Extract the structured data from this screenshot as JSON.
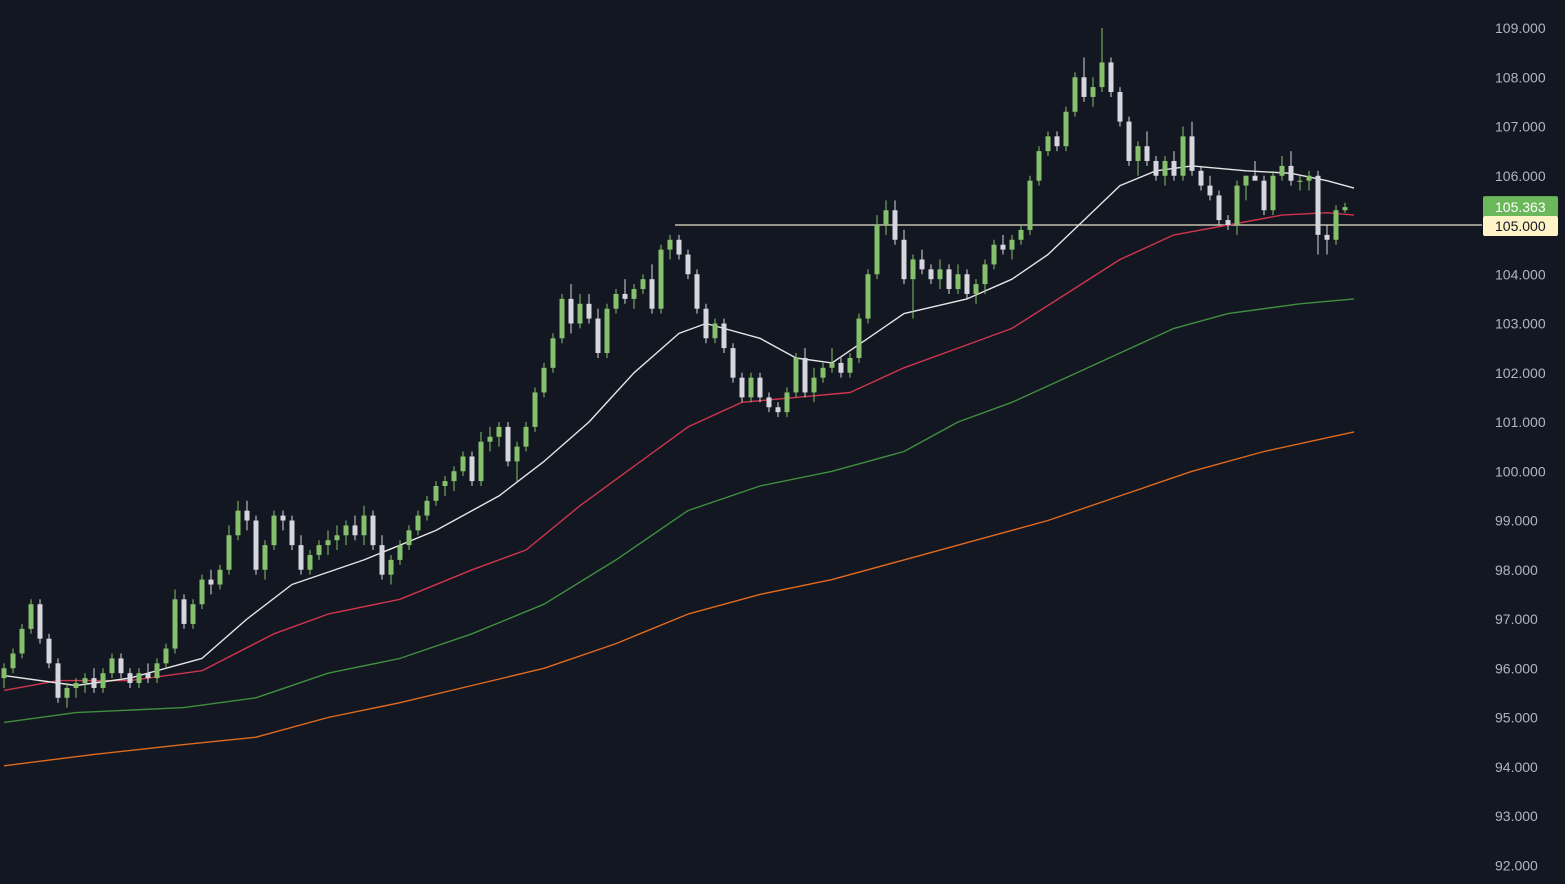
{
  "chart_data": {
    "type": "candlestick",
    "y_axis": {
      "position": "right",
      "ylim": [
        92.0,
        109.3
      ],
      "ticks": [
        "109.000",
        "108.000",
        "107.000",
        "106.000",
        "105.000",
        "104.000",
        "103.000",
        "102.000",
        "101.000",
        "100.000",
        "99.000",
        "98.000",
        "97.000",
        "96.000",
        "95.000",
        "94.000",
        "93.000",
        "92.000"
      ],
      "tick_values": [
        109,
        108,
        107,
        106,
        105,
        104,
        103,
        102,
        101,
        100,
        99,
        98,
        97,
        96,
        95,
        94,
        93,
        92
      ]
    },
    "grid": false,
    "colors": {
      "background": "#131722",
      "up": "#86c06c",
      "down": "#d6d6de",
      "ma_fast": "#e6e6e6",
      "ma_medium": "#d0354d",
      "ma_slow": "#3f8f3f",
      "ma_long": "#e06a1e",
      "price_badge": "#6ab85a",
      "level_badge": "#fff4c8",
      "level_line": "#e8e3c8"
    },
    "last_price": {
      "label": "105.363",
      "value": 105.363
    },
    "horizontal_level": {
      "label": "105.000",
      "value": 105.0
    },
    "candles": [
      [
        95.8,
        96.1,
        95.6,
        96.0
      ],
      [
        96.0,
        96.4,
        95.9,
        96.3
      ],
      [
        96.3,
        96.9,
        96.2,
        96.8
      ],
      [
        96.8,
        97.4,
        96.7,
        97.3
      ],
      [
        97.3,
        97.4,
        96.5,
        96.6
      ],
      [
        96.6,
        96.7,
        96.0,
        96.1
      ],
      [
        96.1,
        96.2,
        95.3,
        95.4
      ],
      [
        95.4,
        95.7,
        95.2,
        95.6
      ],
      [
        95.6,
        95.8,
        95.4,
        95.7
      ],
      [
        95.7,
        95.9,
        95.5,
        95.8
      ],
      [
        95.8,
        96.0,
        95.5,
        95.6
      ],
      [
        95.6,
        96.0,
        95.5,
        95.9
      ],
      [
        95.9,
        96.3,
        95.8,
        96.2
      ],
      [
        96.2,
        96.3,
        95.8,
        95.9
      ],
      [
        95.9,
        96.0,
        95.6,
        95.7
      ],
      [
        95.7,
        96.0,
        95.6,
        95.9
      ],
      [
        95.9,
        96.1,
        95.7,
        95.8
      ],
      [
        95.8,
        96.2,
        95.7,
        96.1
      ],
      [
        96.1,
        96.5,
        96.0,
        96.4
      ],
      [
        96.4,
        97.6,
        96.3,
        97.4
      ],
      [
        97.4,
        97.5,
        96.8,
        96.9
      ],
      [
        96.9,
        97.4,
        96.8,
        97.3
      ],
      [
        97.3,
        97.9,
        97.2,
        97.8
      ],
      [
        97.8,
        98.0,
        97.5,
        97.7
      ],
      [
        97.7,
        98.1,
        97.6,
        98.0
      ],
      [
        98.0,
        98.9,
        97.9,
        98.7
      ],
      [
        98.7,
        99.4,
        98.6,
        99.2
      ],
      [
        99.2,
        99.4,
        98.8,
        99.0
      ],
      [
        99.0,
        99.1,
        97.9,
        98.0
      ],
      [
        98.0,
        98.6,
        97.8,
        98.5
      ],
      [
        98.5,
        99.2,
        98.4,
        99.1
      ],
      [
        99.1,
        99.2,
        98.8,
        99.0
      ],
      [
        99.0,
        99.1,
        98.4,
        98.5
      ],
      [
        98.5,
        98.7,
        97.9,
        98.0
      ],
      [
        98.0,
        98.4,
        97.9,
        98.3
      ],
      [
        98.3,
        98.6,
        98.2,
        98.5
      ],
      [
        98.5,
        98.8,
        98.3,
        98.6
      ],
      [
        98.6,
        98.9,
        98.4,
        98.7
      ],
      [
        98.7,
        99.0,
        98.5,
        98.9
      ],
      [
        98.9,
        99.1,
        98.6,
        98.7
      ],
      [
        98.7,
        99.3,
        98.5,
        99.1
      ],
      [
        99.1,
        99.2,
        98.4,
        98.5
      ],
      [
        98.5,
        98.7,
        97.8,
        97.9
      ],
      [
        97.9,
        98.3,
        97.7,
        98.2
      ],
      [
        98.2,
        98.6,
        98.1,
        98.5
      ],
      [
        98.5,
        98.9,
        98.4,
        98.8
      ],
      [
        98.8,
        99.2,
        98.7,
        99.1
      ],
      [
        99.1,
        99.5,
        99.0,
        99.4
      ],
      [
        99.4,
        99.8,
        99.3,
        99.7
      ],
      [
        99.7,
        99.9,
        99.5,
        99.8
      ],
      [
        99.8,
        100.1,
        99.6,
        100.0
      ],
      [
        100.0,
        100.4,
        99.9,
        100.3
      ],
      [
        100.3,
        100.4,
        99.7,
        99.8
      ],
      [
        99.8,
        100.8,
        99.7,
        100.6
      ],
      [
        100.6,
        100.9,
        100.4,
        100.7
      ],
      [
        100.7,
        101.0,
        100.5,
        100.9
      ],
      [
        100.9,
        101.0,
        100.1,
        100.2
      ],
      [
        100.2,
        100.6,
        99.8,
        100.5
      ],
      [
        100.5,
        101.0,
        100.4,
        100.9
      ],
      [
        100.9,
        101.7,
        100.8,
        101.6
      ],
      [
        101.6,
        102.2,
        101.5,
        102.1
      ],
      [
        102.1,
        102.8,
        102.0,
        102.7
      ],
      [
        102.7,
        103.6,
        102.6,
        103.5
      ],
      [
        103.5,
        103.8,
        102.8,
        103.0
      ],
      [
        103.0,
        103.6,
        102.9,
        103.4
      ],
      [
        103.4,
        103.6,
        103.0,
        103.1
      ],
      [
        103.1,
        103.3,
        102.3,
        102.4
      ],
      [
        102.4,
        103.4,
        102.3,
        103.3
      ],
      [
        103.3,
        103.7,
        103.2,
        103.6
      ],
      [
        103.6,
        103.9,
        103.4,
        103.5
      ],
      [
        103.5,
        103.8,
        103.3,
        103.7
      ],
      [
        103.7,
        104.0,
        103.6,
        103.9
      ],
      [
        103.9,
        104.2,
        103.2,
        103.3
      ],
      [
        103.3,
        104.6,
        103.2,
        104.5
      ],
      [
        104.5,
        104.8,
        104.3,
        104.7
      ],
      [
        104.7,
        104.8,
        104.3,
        104.4
      ],
      [
        104.4,
        104.5,
        103.9,
        104.0
      ],
      [
        104.0,
        104.1,
        103.2,
        103.3
      ],
      [
        103.3,
        103.4,
        102.6,
        102.7
      ],
      [
        102.7,
        103.1,
        102.6,
        103.0
      ],
      [
        103.0,
        103.1,
        102.4,
        102.5
      ],
      [
        102.5,
        102.6,
        101.8,
        101.9
      ],
      [
        101.9,
        102.0,
        101.4,
        101.5
      ],
      [
        101.5,
        102.0,
        101.4,
        101.9
      ],
      [
        101.9,
        102.0,
        101.4,
        101.5
      ],
      [
        101.5,
        101.6,
        101.2,
        101.3
      ],
      [
        101.3,
        101.4,
        101.1,
        101.2
      ],
      [
        101.2,
        101.7,
        101.1,
        101.6
      ],
      [
        101.6,
        102.4,
        101.5,
        102.3
      ],
      [
        102.3,
        102.5,
        101.5,
        101.6
      ],
      [
        101.6,
        102.1,
        101.4,
        101.9
      ],
      [
        101.9,
        102.2,
        101.8,
        102.1
      ],
      [
        102.1,
        102.5,
        102.0,
        102.2
      ],
      [
        102.2,
        102.3,
        101.9,
        102.0
      ],
      [
        102.0,
        102.4,
        101.9,
        102.3
      ],
      [
        102.3,
        103.2,
        102.2,
        103.1
      ],
      [
        103.1,
        104.1,
        103.0,
        104.0
      ],
      [
        104.0,
        105.2,
        103.9,
        105.0
      ],
      [
        105.0,
        105.5,
        104.8,
        105.3
      ],
      [
        105.3,
        105.5,
        104.6,
        104.7
      ],
      [
        104.7,
        104.9,
        103.8,
        103.9
      ],
      [
        103.9,
        104.4,
        103.1,
        104.3
      ],
      [
        104.3,
        104.5,
        104.0,
        104.1
      ],
      [
        104.1,
        104.2,
        103.8,
        103.9
      ],
      [
        103.9,
        104.3,
        103.7,
        104.1
      ],
      [
        104.1,
        104.2,
        103.6,
        103.7
      ],
      [
        103.7,
        104.2,
        103.6,
        104.0
      ],
      [
        104.0,
        104.1,
        103.5,
        103.6
      ],
      [
        103.6,
        103.9,
        103.4,
        103.8
      ],
      [
        103.8,
        104.3,
        103.6,
        104.2
      ],
      [
        104.2,
        104.7,
        104.1,
        104.6
      ],
      [
        104.6,
        104.8,
        104.4,
        104.5
      ],
      [
        104.5,
        104.8,
        104.3,
        104.7
      ],
      [
        104.7,
        105.0,
        104.6,
        104.9
      ],
      [
        104.9,
        106.0,
        104.8,
        105.9
      ],
      [
        105.9,
        106.6,
        105.8,
        106.5
      ],
      [
        106.5,
        106.9,
        106.4,
        106.8
      ],
      [
        106.8,
        106.9,
        106.5,
        106.6
      ],
      [
        106.6,
        107.4,
        106.5,
        107.3
      ],
      [
        107.3,
        108.1,
        107.2,
        108.0
      ],
      [
        108.0,
        108.4,
        107.5,
        107.6
      ],
      [
        107.6,
        108.0,
        107.4,
        107.8
      ],
      [
        107.8,
        109.0,
        107.7,
        108.3
      ],
      [
        108.3,
        108.4,
        107.6,
        107.7
      ],
      [
        107.7,
        107.8,
        107.0,
        107.1
      ],
      [
        107.1,
        107.2,
        106.2,
        106.3
      ],
      [
        106.3,
        106.7,
        106.0,
        106.6
      ],
      [
        106.6,
        106.9,
        106.2,
        106.3
      ],
      [
        106.3,
        106.4,
        105.9,
        106.0
      ],
      [
        106.0,
        106.4,
        105.8,
        106.3
      ],
      [
        106.3,
        106.5,
        105.9,
        106.0
      ],
      [
        106.0,
        107.0,
        105.9,
        106.8
      ],
      [
        106.8,
        107.1,
        106.0,
        106.1
      ],
      [
        106.1,
        106.2,
        105.7,
        105.8
      ],
      [
        105.8,
        106.0,
        105.5,
        105.6
      ],
      [
        105.6,
        105.7,
        105.0,
        105.1
      ],
      [
        105.1,
        105.2,
        104.9,
        105.0
      ],
      [
        105.0,
        105.9,
        104.8,
        105.8
      ],
      [
        105.8,
        106.0,
        105.5,
        106.0
      ],
      [
        106.0,
        106.3,
        105.9,
        105.9
      ],
      [
        105.9,
        106.0,
        105.2,
        105.3
      ],
      [
        105.3,
        106.1,
        105.2,
        106.0
      ],
      [
        106.0,
        106.4,
        105.9,
        106.2
      ],
      [
        106.2,
        106.5,
        105.8,
        105.9
      ],
      [
        105.9,
        106.0,
        105.7,
        105.9
      ],
      [
        105.9,
        106.1,
        105.7,
        106.0
      ],
      [
        106.0,
        106.1,
        104.4,
        104.8
      ],
      [
        104.8,
        105.0,
        104.4,
        104.7
      ],
      [
        104.7,
        105.4,
        104.6,
        105.3
      ],
      [
        105.3,
        105.45,
        105.25,
        105.363
      ]
    ],
    "moving_averages": {
      "ma_fast": [
        [
          0,
          95.85
        ],
        [
          8,
          95.65
        ],
        [
          14,
          95.8
        ],
        [
          22,
          96.2
        ],
        [
          27,
          97.0
        ],
        [
          32,
          97.7
        ],
        [
          40,
          98.2
        ],
        [
          48,
          98.8
        ],
        [
          55,
          99.5
        ],
        [
          60,
          100.2
        ],
        [
          65,
          101.0
        ],
        [
          70,
          102.0
        ],
        [
          75,
          102.8
        ],
        [
          78,
          103.0
        ],
        [
          84,
          102.7
        ],
        [
          88,
          102.3
        ],
        [
          92,
          102.2
        ],
        [
          96,
          102.7
        ],
        [
          100,
          103.2
        ],
        [
          107,
          103.5
        ],
        [
          112,
          103.9
        ],
        [
          116,
          104.4
        ],
        [
          120,
          105.1
        ],
        [
          124,
          105.8
        ],
        [
          128,
          106.1
        ],
        [
          132,
          106.2
        ],
        [
          138,
          106.1
        ],
        [
          143,
          106.05
        ],
        [
          147,
          105.9
        ],
        [
          150,
          105.75
        ]
      ],
      "ma_medium": [
        [
          0,
          95.55
        ],
        [
          6,
          95.75
        ],
        [
          14,
          95.75
        ],
        [
          22,
          95.95
        ],
        [
          30,
          96.7
        ],
        [
          36,
          97.1
        ],
        [
          44,
          97.4
        ],
        [
          52,
          98.0
        ],
        [
          58,
          98.4
        ],
        [
          64,
          99.3
        ],
        [
          70,
          100.1
        ],
        [
          76,
          100.9
        ],
        [
          82,
          101.4
        ],
        [
          88,
          101.5
        ],
        [
          94,
          101.6
        ],
        [
          100,
          102.1
        ],
        [
          106,
          102.5
        ],
        [
          112,
          102.9
        ],
        [
          118,
          103.6
        ],
        [
          124,
          104.3
        ],
        [
          130,
          104.8
        ],
        [
          136,
          105.0
        ],
        [
          142,
          105.2
        ],
        [
          147,
          105.25
        ],
        [
          150,
          105.2
        ]
      ],
      "ma_slow": [
        [
          0,
          94.9
        ],
        [
          8,
          95.1
        ],
        [
          20,
          95.2
        ],
        [
          28,
          95.4
        ],
        [
          36,
          95.9
        ],
        [
          44,
          96.2
        ],
        [
          52,
          96.7
        ],
        [
          60,
          97.3
        ],
        [
          68,
          98.2
        ],
        [
          76,
          99.2
        ],
        [
          84,
          99.7
        ],
        [
          92,
          100.0
        ],
        [
          100,
          100.4
        ],
        [
          106,
          101.0
        ],
        [
          112,
          101.4
        ],
        [
          118,
          101.9
        ],
        [
          124,
          102.4
        ],
        [
          130,
          102.9
        ],
        [
          136,
          103.2
        ],
        [
          144,
          103.4
        ],
        [
          150,
          103.5
        ]
      ],
      "ma_long": [
        [
          0,
          94.02
        ],
        [
          10,
          94.25
        ],
        [
          20,
          94.45
        ],
        [
          28,
          94.6
        ],
        [
          36,
          95.0
        ],
        [
          44,
          95.3
        ],
        [
          52,
          95.65
        ],
        [
          60,
          96.0
        ],
        [
          68,
          96.5
        ],
        [
          76,
          97.1
        ],
        [
          84,
          97.5
        ],
        [
          92,
          97.8
        ],
        [
          100,
          98.2
        ],
        [
          108,
          98.6
        ],
        [
          116,
          99.0
        ],
        [
          124,
          99.5
        ],
        [
          132,
          100.0
        ],
        [
          140,
          100.4
        ],
        [
          150,
          100.8
        ]
      ]
    }
  }
}
